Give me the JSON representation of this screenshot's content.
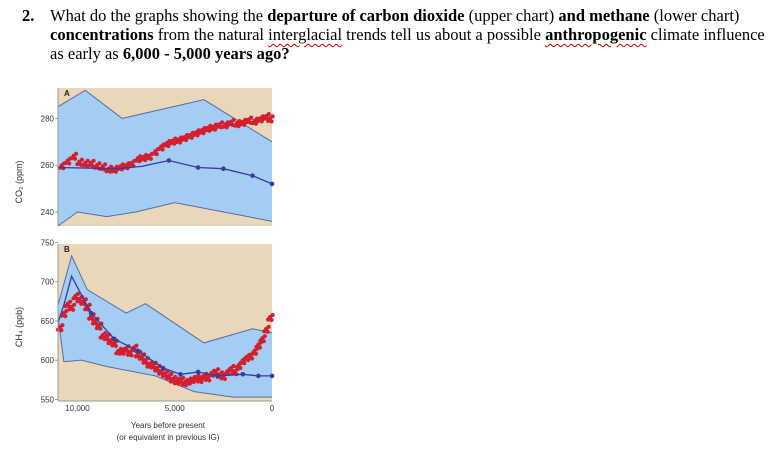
{
  "question": {
    "number": "2.",
    "parts": [
      {
        "text": "What do the graphs showing the ",
        "style": "normal"
      },
      {
        "text": "departure of carbon dioxide",
        "style": "bold"
      },
      {
        "text": " (upper chart) ",
        "style": "normal"
      },
      {
        "text": "and methane",
        "style": "bold"
      },
      {
        "text": " (lower chart) ",
        "style": "normal"
      },
      {
        "text": "concentrations",
        "style": "bold"
      },
      {
        "text": " from the natural ",
        "style": "normal"
      },
      {
        "text": "interglacial",
        "style": "wavy"
      },
      {
        "text": " trends tell us about a possible ",
        "style": "normal"
      },
      {
        "text": "anthropogenic",
        "style": "bold-wavy"
      },
      {
        "text": " climate influence as early as ",
        "style": "normal"
      },
      {
        "text": "6,000 - 5,000 years ago?",
        "style": "bold"
      }
    ]
  },
  "colors": {
    "envelope": "#a3cdf2",
    "background": "#e8d8b9",
    "trend": "#3a3aa0",
    "observed": "#d31f2e"
  },
  "chart_data": [
    {
      "type": "scatter",
      "panel_label": "A",
      "ylabel": "CO₂ (ppm)",
      "y_ticks": [
        240,
        260,
        280
      ],
      "ylim": [
        234,
        293
      ],
      "xlim": [
        11000,
        0
      ],
      "envelope_upper": [
        [
          11000,
          285
        ],
        [
          9600,
          292
        ],
        [
          7700,
          280
        ],
        [
          3500,
          288
        ],
        [
          0,
          270
        ]
      ],
      "envelope_lower": [
        [
          11000,
          234
        ],
        [
          10000,
          240
        ],
        [
          8500,
          238
        ],
        [
          7000,
          240
        ],
        [
          5000,
          244
        ],
        [
          0,
          236
        ]
      ],
      "trend": [
        [
          11000,
          259
        ],
        [
          8000,
          258.5
        ],
        [
          6700,
          259.5
        ],
        [
          5300,
          262
        ],
        [
          3800,
          259
        ],
        [
          2500,
          258.5
        ],
        [
          1000,
          255.5
        ],
        [
          0,
          252
        ]
      ],
      "observed": [
        [
          10800,
          260
        ],
        [
          10500,
          262
        ],
        [
          10200,
          264
        ],
        [
          9900,
          261.5
        ],
        [
          9600,
          261
        ],
        [
          9300,
          261
        ],
        [
          9000,
          260
        ],
        [
          8700,
          259.5
        ],
        [
          8400,
          258.5
        ],
        [
          8100,
          258.5
        ],
        [
          7800,
          259.5
        ],
        [
          7500,
          260
        ],
        [
          7200,
          261
        ],
        [
          6900,
          263
        ],
        [
          6600,
          263.5
        ],
        [
          6300,
          264
        ],
        [
          6000,
          266
        ],
        [
          5700,
          268
        ],
        [
          5400,
          269.5
        ],
        [
          5100,
          270.5
        ],
        [
          4800,
          271
        ],
        [
          4500,
          272
        ],
        [
          4200,
          273
        ],
        [
          3900,
          274
        ],
        [
          3600,
          275
        ],
        [
          3300,
          276
        ],
        [
          3000,
          276.5
        ],
        [
          2700,
          277.5
        ],
        [
          2400,
          277.5
        ],
        [
          2100,
          278.5
        ],
        [
          1800,
          278
        ],
        [
          1500,
          278.5
        ],
        [
          1200,
          279.5
        ],
        [
          900,
          279
        ],
        [
          600,
          280
        ],
        [
          300,
          281
        ],
        [
          100,
          280
        ]
      ]
    },
    {
      "type": "scatter",
      "panel_label": "B",
      "ylabel": "CH₄ (ppb)",
      "y_ticks": [
        550,
        600,
        650,
        700,
        750
      ],
      "ylim": [
        548,
        748
      ],
      "xlim": [
        11000,
        0
      ],
      "x_ticks": [
        {
          "value": 10000,
          "label": "10,000"
        },
        {
          "value": 5000,
          "label": "5,000"
        },
        {
          "value": 0,
          "label": "0"
        }
      ],
      "xlabel": "Years before present",
      "xlabel_note": "(or equivalent in previous IG)",
      "envelope_upper": [
        [
          11000,
          670
        ],
        [
          10300,
          733
        ],
        [
          9500,
          690
        ],
        [
          7500,
          660
        ],
        [
          6500,
          672
        ],
        [
          3500,
          622
        ],
        [
          1000,
          640
        ],
        [
          0,
          635
        ]
      ],
      "envelope_lower": [
        [
          11000,
          655
        ],
        [
          10700,
          598
        ],
        [
          9800,
          600
        ],
        [
          8500,
          592
        ],
        [
          6000,
          580
        ],
        [
          4000,
          560
        ],
        [
          2000,
          553
        ],
        [
          0,
          553
        ]
      ],
      "trend": [
        [
          11000,
          648
        ],
        [
          10700,
          670
        ],
        [
          10300,
          707
        ],
        [
          9300,
          660
        ],
        [
          8100,
          627
        ],
        [
          6900,
          612
        ],
        [
          5600,
          590
        ],
        [
          4700,
          582
        ],
        [
          3800,
          585
        ],
        [
          2800,
          580
        ],
        [
          1500,
          582
        ],
        [
          700,
          580
        ],
        [
          0,
          580
        ]
      ],
      "observed": [
        [
          10900,
          642
        ],
        [
          10700,
          660
        ],
        [
          10500,
          672
        ],
        [
          10300,
          668
        ],
        [
          10100,
          682
        ],
        [
          9900,
          678
        ],
        [
          9700,
          675
        ],
        [
          9500,
          668
        ],
        [
          9300,
          656
        ],
        [
          9100,
          650
        ],
        [
          8900,
          644
        ],
        [
          8700,
          632
        ],
        [
          8500,
          630
        ],
        [
          8300,
          625
        ],
        [
          8100,
          622
        ],
        [
          7900,
          612
        ],
        [
          7700,
          612
        ],
        [
          7500,
          615
        ],
        [
          7300,
          610
        ],
        [
          7100,
          616
        ],
        [
          6900,
          608
        ],
        [
          6700,
          605
        ],
        [
          6500,
          600
        ],
        [
          6300,
          595
        ],
        [
          6100,
          594
        ],
        [
          5900,
          590
        ],
        [
          5700,
          586
        ],
        [
          5500,
          583
        ],
        [
          5300,
          580
        ],
        [
          5100,
          576
        ],
        [
          4900,
          574
        ],
        [
          4700,
          575
        ],
        [
          4500,
          572
        ],
        [
          4300,
          574
        ],
        [
          4100,
          576
        ],
        [
          3900,
          578
        ],
        [
          3700,
          576
        ],
        [
          3500,
          580
        ],
        [
          3300,
          578
        ],
        [
          3100,
          584
        ],
        [
          2900,
          586
        ],
        [
          2700,
          582
        ],
        [
          2500,
          580
        ],
        [
          2300,
          586
        ],
        [
          2100,
          590
        ],
        [
          1900,
          586
        ],
        [
          1700,
          594
        ],
        [
          1500,
          600
        ],
        [
          1300,
          604
        ],
        [
          1100,
          606
        ],
        [
          900,
          612
        ],
        [
          700,
          620
        ],
        [
          500,
          628
        ],
        [
          300,
          640
        ],
        [
          100,
          655
        ]
      ]
    }
  ]
}
